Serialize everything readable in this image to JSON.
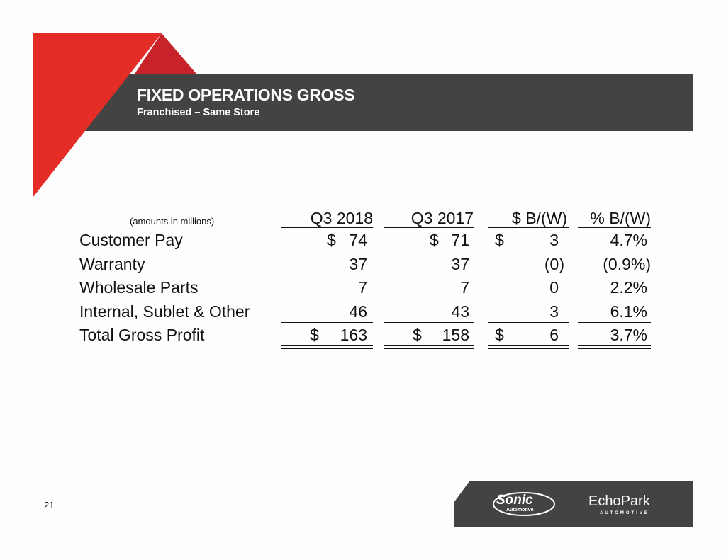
{
  "header": {
    "title": "FIXED OPERATIONS GROSS",
    "subtitle": "Franchised – Same Store"
  },
  "table": {
    "note": "(amounts in millions)",
    "columns": [
      "Q3 2018",
      "Q3 2017",
      "$ B/(W)",
      "% B/(W)"
    ],
    "rows": [
      {
        "label": "Customer Pay",
        "q3_2018_sym": "$",
        "q3_2018": "74",
        "q3_2017_sym": "$",
        "q3_2017": "71",
        "bw_sym": "$",
        "bw": "3",
        "pct": "4.7%"
      },
      {
        "label": "Warranty",
        "q3_2018": "37",
        "q3_2017": "37",
        "bw": "(0)",
        "pct": "(0.9%)"
      },
      {
        "label": "Wholesale Parts",
        "q3_2018": "7",
        "q3_2017": "7",
        "bw": "0",
        "pct": "2.2%"
      },
      {
        "label": "Internal, Sublet & Other",
        "q3_2018": "46",
        "q3_2017": "43",
        "bw": "3",
        "pct": "6.1%"
      },
      {
        "label": "Total Gross Profit",
        "q3_2018_sym": "$",
        "q3_2018": "163",
        "q3_2017_sym": "$",
        "q3_2017": "158",
        "bw_sym": "$",
        "bw": "6",
        "pct": "3.7%"
      }
    ]
  },
  "footer": {
    "page_number": "21",
    "logo_sonic": "Sonic Automotive",
    "logo_sonic_main": "Sonic",
    "logo_sonic_sub": "Automotive",
    "logo_echo": "EchoPark",
    "logo_echo_sub": "AUTOMOTIVE"
  },
  "colors": {
    "red": "#e52d27",
    "dark_red": "#c8232a",
    "band": "#434343"
  }
}
